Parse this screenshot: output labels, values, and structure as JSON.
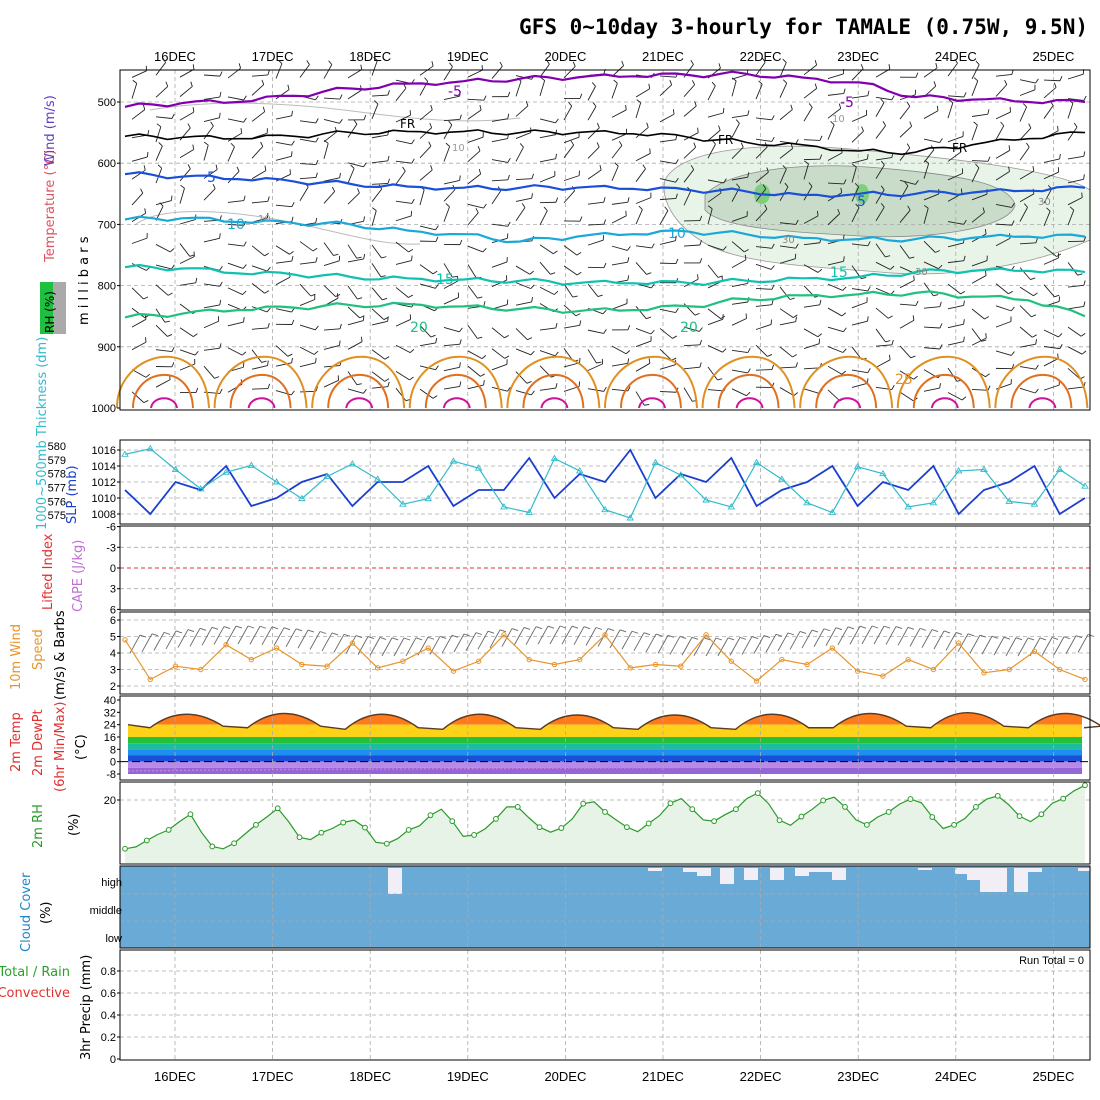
{
  "title": "GFS 0~10day 3-hourly for TAMALE (0.75W, 9.5N)",
  "dates": [
    "16DEC",
    "17DEC",
    "18DEC",
    "19DEC",
    "20DEC",
    "21DEC",
    "22DEC",
    "23DEC",
    "24DEC",
    "25DEC"
  ],
  "colors": {
    "purple": "#8000b0",
    "blue": "#1a4fd8",
    "cyan": "#1aa8d8",
    "teal": "#10c0b0",
    "green": "#20c080",
    "orange": "#e09020",
    "magenta": "#d0109a",
    "slp": "#1a3fcf",
    "thickness": "#33bbcc",
    "wind": "#e8942a",
    "rh": "#2a9a2a",
    "cloud": "#6aaad6"
  },
  "panel1": {
    "ylabel_wind": "Wind (m/s)",
    "ylabel_temp": "Temperature (°C)",
    "ylabel_rh": "RH (%)",
    "ylabel_mb": "m i l l i b a r s",
    "yticks": [
      "500",
      "600",
      "700",
      "800",
      "900",
      "1000"
    ],
    "contour_labels": {
      "t_minus5a": "-5",
      "t_minus5b": "-5",
      "fr1": "FR",
      "fr2": "FR",
      "fr3": "FR",
      "t5a": "5",
      "t5b": "5",
      "t10a": "10",
      "t10b": "10",
      "t15a": "15",
      "t15b": "15",
      "t20a": "20",
      "t20b": "20",
      "t25": "25",
      "rh10a": "10",
      "rh10b": "10",
      "rh10c": "10",
      "rh30a": "30",
      "rh30b": "30",
      "rh30c": "30"
    }
  },
  "panel2": {
    "ylabel_thick": "1000~500mb Thickness (dm)",
    "ylabel_slp": "SLP (mb)",
    "left_ticks": [
      "580",
      "579",
      "578",
      "577",
      "576",
      "575"
    ],
    "right_ticks": [
      "1016",
      "1014",
      "1012",
      "1010",
      "1008"
    ]
  },
  "panel3": {
    "ylabel_li": "Lifted Index",
    "ylabel_cape": "CAPE (J/kg)",
    "yticks": [
      "-6",
      "-3",
      "0",
      "3",
      "6"
    ]
  },
  "panel4": {
    "ylabel": "10m Wind Speed (m/s) & Barbs",
    "ylabel_a": "10m Wind",
    "ylabel_b": "Speed",
    "ylabel_c": "(m/s) & Barbs",
    "yticks": [
      "6",
      "5",
      "4",
      "3",
      "2"
    ]
  },
  "panel5": {
    "ylabel_a": "2m Temp",
    "ylabel_b": "2m DewPt",
    "ylabel_c": "(6hr Min/Max)",
    "ylabel_unit": "(°C)",
    "yticks": [
      "40",
      "32",
      "24",
      "16",
      "8",
      "0",
      "-8"
    ]
  },
  "panel6": {
    "ylabel": "2m RH",
    "unit": "(%)",
    "yticks": [
      "20"
    ]
  },
  "panel7": {
    "ylabel": "Cloud Cover",
    "unit": "(%)",
    "levels": [
      "high",
      "middle",
      "low"
    ]
  },
  "panel8": {
    "ylabel_a": "Total / Rain",
    "ylabel_b": "Convective",
    "ylabel_c": "3hr Precip (mm)",
    "yticks": [
      "0.8",
      "0.6",
      "0.4",
      "0.2",
      "0"
    ],
    "run_total": "Run Total = 0"
  },
  "chart_data": [
    {
      "type": "line",
      "title": "GFS 0~10day 3-hourly for TAMALE (0.75W, 9.5N)",
      "panel": "Pressure levels: Temperature contours (°C), Wind barbs, RH shading",
      "y_range_mb": [
        1000,
        450
      ],
      "series": [
        {
          "name": "-5",
          "level_mb": [
            508,
            502,
            500,
            490,
            478,
            470,
            466,
            462,
            460,
            458,
            456,
            454,
            460,
            468,
            492,
            496,
            500,
            500
          ]
        },
        {
          "name": "FR",
          "level_mb": [
            556,
            558,
            560,
            556,
            550,
            548,
            548,
            550,
            550,
            552,
            558,
            566,
            570,
            580,
            582,
            570,
            560,
            550
          ]
        },
        {
          "name": "5",
          "level_mb": [
            618,
            622,
            626,
            630,
            634,
            638,
            640,
            640,
            640,
            642,
            644,
            646,
            652,
            650,
            650,
            648,
            645,
            640
          ]
        },
        {
          "name": "10",
          "level_mb": [
            692,
            690,
            696,
            698,
            700,
            710,
            716,
            728,
            720,
            716,
            712,
            716,
            722,
            724,
            724,
            722,
            720,
            720
          ]
        },
        {
          "name": "15",
          "level_mb": [
            770,
            772,
            780,
            782,
            786,
            788,
            790,
            792,
            796,
            796,
            796,
            792,
            788,
            786,
            778,
            776,
            776,
            778
          ]
        },
        {
          "name": "20",
          "level_mb": [
            852,
            846,
            840,
            836,
            832,
            830,
            834,
            838,
            842,
            840,
            834,
            822,
            816,
            814,
            812,
            818,
            824,
            850
          ]
        }
      ]
    },
    {
      "type": "line",
      "panel": "1000~500mb Thickness (dm) and SLP (mb)",
      "x": [
        "15DEC18",
        "16DEC00",
        "16DEC06",
        "16DEC12",
        "16DEC18",
        "17DEC00",
        "17DEC06",
        "17DEC12",
        "17DEC18",
        "18DEC00",
        "18DEC06",
        "18DEC12",
        "18DEC18",
        "19DEC00",
        "19DEC06",
        "19DEC12",
        "19DEC18",
        "20DEC00",
        "20DEC06",
        "20DEC12",
        "20DEC18",
        "21DEC00",
        "21DEC06",
        "21DEC12",
        "21DEC18",
        "22DEC00",
        "22DEC06",
        "22DEC12",
        "22DEC18",
        "23DEC00",
        "23DEC06",
        "23DEC12",
        "23DEC18",
        "24DEC00",
        "24DEC06",
        "24DEC12",
        "24DEC18",
        "25DEC00",
        "25DEC06"
      ],
      "series": [
        {
          "name": "SLP (mb)",
          "values": [
            1011,
            1008,
            1012,
            1011,
            1014,
            1009,
            1010,
            1012,
            1013,
            1009,
            1012,
            1012,
            1014,
            1009,
            1011,
            1011,
            1015,
            1010,
            1013,
            1012,
            1016,
            1010,
            1013,
            1012,
            1015,
            1009,
            1011,
            1012,
            1014,
            1009,
            1012,
            1011,
            1014,
            1008,
            1011,
            1012,
            1014,
            1008,
            1010
          ]
        },
        {
          "name": "Thickness (dm)",
          "values": [
            579.4,
            579.8,
            578.3,
            576.9,
            578.1,
            578.6,
            577.4,
            576.2,
            577.8,
            578.7,
            577.6,
            575.8,
            576.2,
            578.9,
            578.4,
            575.6,
            575.2,
            579.1,
            578.2,
            575.4,
            574.8,
            578.8,
            577.9,
            576.1,
            575.6,
            578.8,
            577.6,
            575.9,
            575.2,
            578.5,
            578.0,
            575.6,
            575.9,
            578.2,
            578.3,
            576.0,
            575.8,
            578.3,
            577.1
          ]
        }
      ]
    },
    {
      "type": "line",
      "panel": "Lifted Index / CAPE",
      "ylim": [
        -6,
        6
      ],
      "series": []
    },
    {
      "type": "line",
      "panel": "10m Wind Speed (m/s)",
      "ylim": [
        2,
        6.5
      ],
      "series": [
        {
          "name": "10m Wind Speed",
          "values": [
            4.8,
            2.4,
            3.2,
            3.0,
            4.5,
            3.6,
            4.3,
            3.3,
            3.2,
            4.6,
            3.1,
            3.5,
            4.3,
            2.9,
            3.5,
            5.1,
            3.6,
            3.3,
            3.6,
            5.1,
            3.1,
            3.3,
            3.2,
            5.1,
            3.5,
            2.3,
            3.6,
            3.3,
            4.3,
            2.9,
            2.6,
            3.6,
            3.0,
            4.6,
            2.8,
            3.0,
            4.1,
            3.0,
            2.4
          ]
        }
      ]
    },
    {
      "type": "area",
      "panel": "2m Temp / 2m DewPt (°C)",
      "ylim": [
        -10,
        40
      ],
      "series": [
        {
          "name": "2m Temp Max",
          "values": [
            35,
            36,
            36,
            36,
            35,
            35,
            36,
            36,
            37,
            36
          ]
        },
        {
          "name": "2m Temp Min",
          "values": [
            22,
            22,
            21,
            21,
            21,
            21,
            21,
            22,
            22,
            22
          ]
        },
        {
          "name": "2m DewPt",
          "values": [
            -6,
            -6,
            -5,
            -5,
            -4,
            -4,
            -3,
            -2,
            -1,
            -1
          ]
        }
      ]
    },
    {
      "type": "line",
      "panel": "2m RH (%)",
      "ylim": [
        8,
        26
      ],
      "series": [
        {
          "name": "2m RH",
          "values": [
            9.4,
            9.8,
            11.2,
            12.5,
            13.5,
            15.3,
            16.9,
            13.0,
            9.9,
            9.4,
            10.6,
            12.6,
            14.6,
            16.3,
            18.2,
            15.3,
            11.9,
            11.4,
            12.9,
            13.8,
            15.1,
            15.6,
            14.0,
            10.8,
            10.5,
            11.6,
            13.5,
            14.4,
            16.7,
            18.0,
            15.4,
            12.1,
            12.4,
            13.7,
            15.9,
            18.5,
            18.5,
            16.2,
            14.1,
            13.0,
            13.9,
            15.9,
            19.2,
            19.6,
            17.4,
            15.7,
            14.1,
            13.1,
            14.9,
            16.6,
            19.3,
            20.3,
            18.0,
            15.7,
            15.4,
            16.8,
            18.0,
            20.3,
            21.5,
            19.2,
            15.6,
            14.5,
            16.4,
            18.0,
            19.9,
            20.6,
            18.5,
            15.7,
            14.6,
            16.3,
            17.4,
            19.1,
            20.2,
            19.4,
            16.3,
            13.8,
            14.6,
            16.0,
            18.5,
            20.2,
            20.9,
            19.0,
            16.5,
            15.3,
            16.9,
            19.3,
            20.3,
            22.0,
            23.2
          ]
        }
      ]
    },
    {
      "type": "bar",
      "panel": "Cloud Cover (%) high",
      "series": [
        {
          "name": "high",
          "values": [
            0,
            0,
            0,
            0,
            0,
            0,
            0,
            0,
            0,
            0,
            0,
            0,
            0,
            0,
            0,
            0,
            0,
            0,
            0,
            0,
            0,
            0,
            0,
            0,
            0,
            0,
            0,
            0,
            0,
            0,
            0,
            0,
            0,
            0,
            0,
            0,
            0,
            0,
            0,
            0,
            0,
            0,
            0,
            0,
            0,
            0,
            0,
            0,
            0,
            0,
            0,
            0,
            0,
            0,
            0,
            0,
            0,
            0,
            0,
            0,
            0,
            0,
            0,
            0,
            0,
            0,
            0,
            0,
            0,
            0,
            0,
            0,
            0,
            0,
            0,
            0,
            0,
            0,
            0,
            0
          ]
        }
      ]
    },
    {
      "type": "bar",
      "panel": "3hr Precip (mm)",
      "ylim": [
        0,
        1
      ],
      "series": [
        {
          "name": "Total / Rain",
          "values": []
        },
        {
          "name": "Convective",
          "values": []
        }
      ]
    }
  ]
}
